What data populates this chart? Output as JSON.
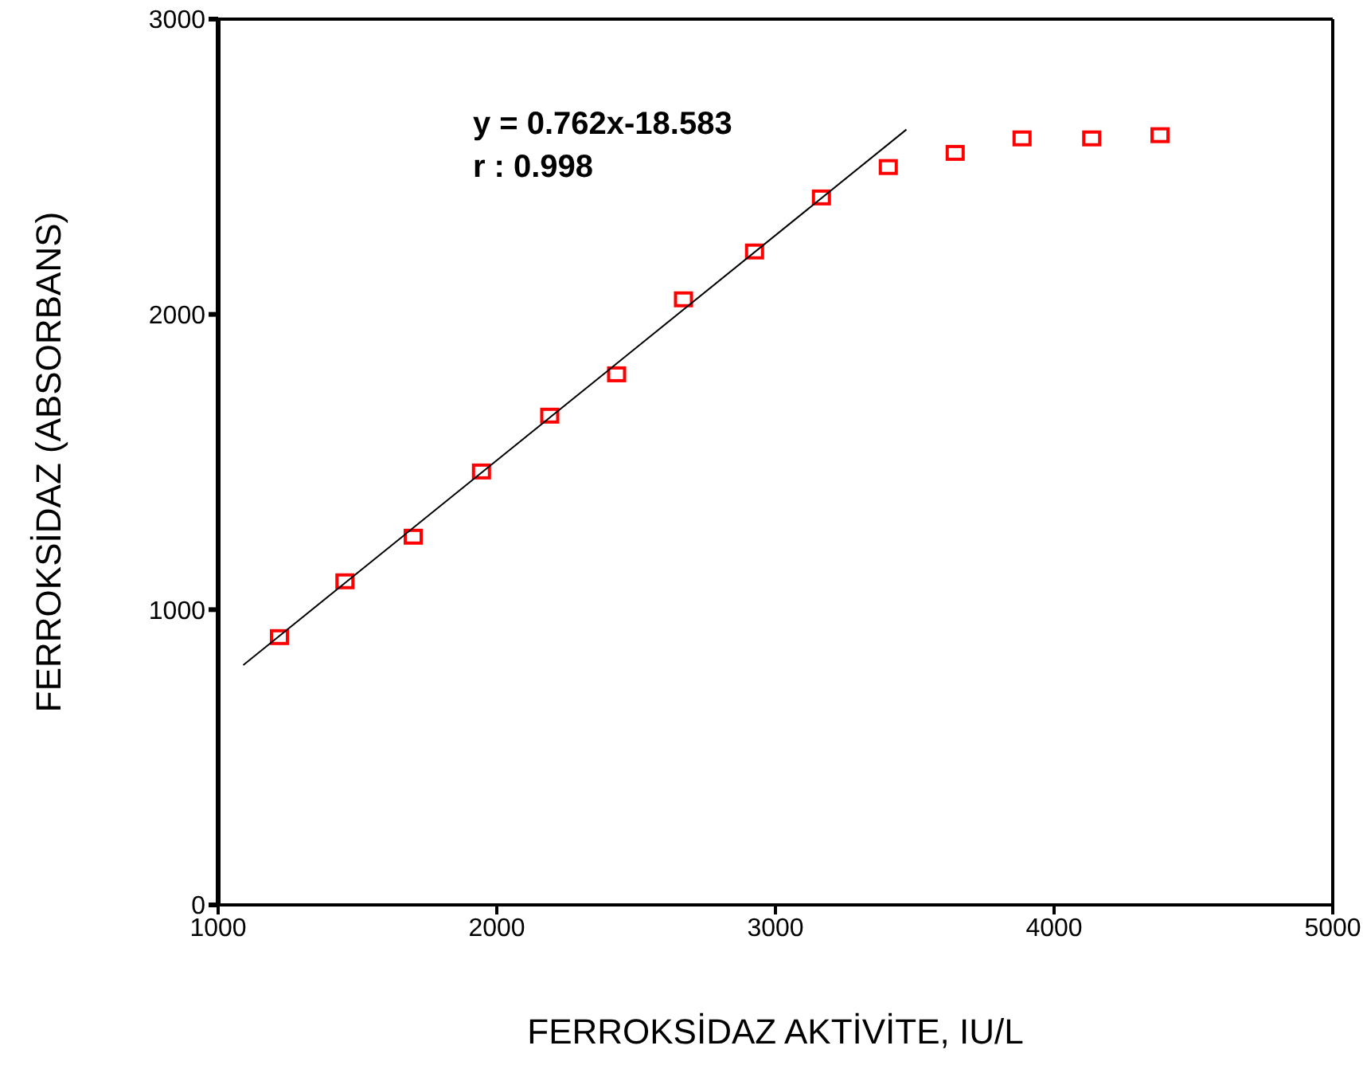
{
  "chart_data": {
    "type": "scatter",
    "xlabel": "FERROKSİDAZ AKTİVİTE, IU/L",
    "ylabel": "FERROKSİDAZ (ABSORBANS)",
    "xlim": [
      1000,
      5000
    ],
    "xticks": [
      1000,
      2000,
      3000,
      4000,
      5000
    ],
    "ylim": [
      0,
      3000
    ],
    "yticks": [
      0,
      1000,
      2000,
      3000
    ],
    "annotations": [
      "y = 0.762x-18.583",
      "r : 0.998"
    ],
    "grid": false,
    "legend": false,
    "series": [
      {
        "color": "#ff0000",
        "marker": "square",
        "x": [
          1220,
          1455,
          1700,
          1945,
          2190,
          2430,
          2670,
          2925,
          3165,
          3405,
          3645,
          3885,
          4135,
          4380
        ],
        "values": [
          907,
          1096,
          1247,
          1468,
          1657,
          1797,
          2051,
          2213,
          2396,
          2499,
          2547,
          2596,
          2596,
          2607
        ]
      },
      {
        "type": "line",
        "color": "#000000",
        "marker": "none",
        "x": [
          1090,
          3470
        ],
        "values": [
          812,
          2626
        ]
      }
    ]
  }
}
